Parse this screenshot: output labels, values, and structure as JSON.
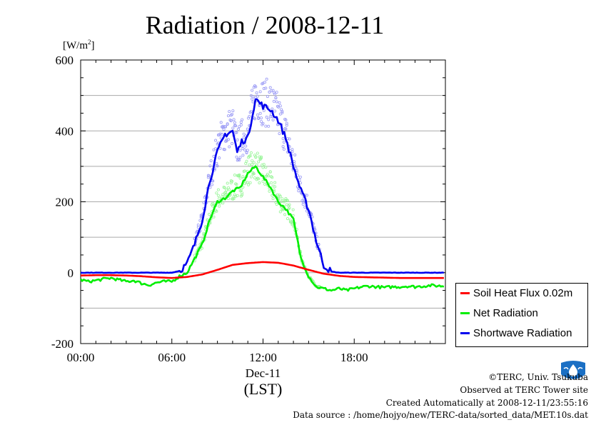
{
  "chart_data": {
    "type": "line",
    "title": "Radiation / 2008-12-11",
    "ylabel": "[W/m2]",
    "ylabel_parts": {
      "base": "[W/m",
      "sup": "2",
      "close": "]"
    },
    "xlabel": "Dec-11",
    "xlabel2": "(LST)",
    "ylim": [
      -200,
      600
    ],
    "xlim_hours": [
      0,
      24
    ],
    "grid": "horizontal",
    "x_ticks": [
      "00:00",
      "06:00",
      "12:00",
      "18:00"
    ],
    "y_ticks": [
      "600",
      "400",
      "200",
      "0",
      "-200"
    ],
    "x_unit": "hour (LST)",
    "legend_position": "lower-right (outside plot)",
    "series": [
      {
        "name": "Soil Heat Flux 0.02m",
        "color": "#ff0000",
        "x": [
          0,
          1,
          2,
          3,
          4,
          5,
          6,
          7,
          8,
          9,
          10,
          11,
          12,
          13,
          14,
          15,
          16,
          17,
          18,
          19,
          20,
          21,
          22,
          23.9
        ],
        "y": [
          -8,
          -7,
          -7,
          -8,
          -10,
          -13,
          -15,
          -12,
          -5,
          8,
          22,
          27,
          30,
          28,
          20,
          8,
          -3,
          -9,
          -12,
          -13,
          -14,
          -15,
          -15,
          -15
        ]
      },
      {
        "name": "Net Radiation",
        "color": "#00ee00",
        "x": [
          0,
          0.5,
          1,
          1.5,
          2,
          2.5,
          3,
          3.5,
          4,
          4.5,
          5,
          5.5,
          6,
          6.5,
          7,
          7.5,
          8,
          8.5,
          9,
          9.5,
          10,
          10.5,
          11,
          11.5,
          12,
          12.5,
          13,
          13.5,
          14,
          14.5,
          15,
          15.5,
          16,
          16.5,
          17,
          17.5,
          18,
          18.5,
          19,
          19.5,
          20,
          20.5,
          21,
          21.5,
          22,
          22.5,
          23,
          23.9
        ],
        "y": [
          -20,
          -25,
          -22,
          -18,
          -15,
          -20,
          -25,
          -22,
          -30,
          -35,
          -28,
          -25,
          -25,
          -10,
          0,
          40,
          80,
          150,
          200,
          210,
          230,
          240,
          280,
          300,
          270,
          240,
          200,
          180,
          150,
          40,
          -10,
          -40,
          -45,
          -50,
          -45,
          -50,
          -45,
          -40,
          -38,
          -40,
          -42,
          -40,
          -40,
          -38,
          -40,
          -38,
          -36,
          -38
        ]
      },
      {
        "name": "Shortwave Radiation",
        "color": "#0000ee",
        "x": [
          0,
          1,
          2,
          3,
          4,
          5,
          6,
          6.5,
          7,
          7.5,
          8,
          8.5,
          9,
          9.5,
          10,
          10.3,
          10.6,
          11,
          11.5,
          12,
          12.5,
          13,
          13.5,
          14,
          14.5,
          15,
          15.5,
          16,
          16.5,
          17,
          18,
          19,
          20,
          21,
          22,
          23,
          23.9
        ],
        "y": [
          0,
          0,
          0,
          0,
          0,
          0,
          0,
          5,
          25,
          80,
          150,
          260,
          340,
          390,
          400,
          340,
          370,
          380,
          490,
          470,
          460,
          430,
          380,
          300,
          230,
          180,
          90,
          20,
          3,
          0,
          0,
          0,
          0,
          0,
          0,
          0,
          0
        ]
      }
    ]
  },
  "legend": {
    "items": [
      {
        "label": "Soil Heat Flux 0.02m",
        "color": "#ff0000"
      },
      {
        "label": "Net Radiation",
        "color": "#00ee00"
      },
      {
        "label": "Shortwave Radiation",
        "color": "#0000ee"
      }
    ]
  },
  "footer": {
    "line1": "©TERC, Univ. Tsukuba",
    "line2": "Observed at TERC Tower site",
    "line3": "Created Automatically at 2008-12-11/23:55:16",
    "line4": "Data source : /home/hojyo/new/TERC-data/sorted_data/MET.10s.dat",
    "logo_text": "TERC",
    "logo_color": "#1a6fc4"
  }
}
